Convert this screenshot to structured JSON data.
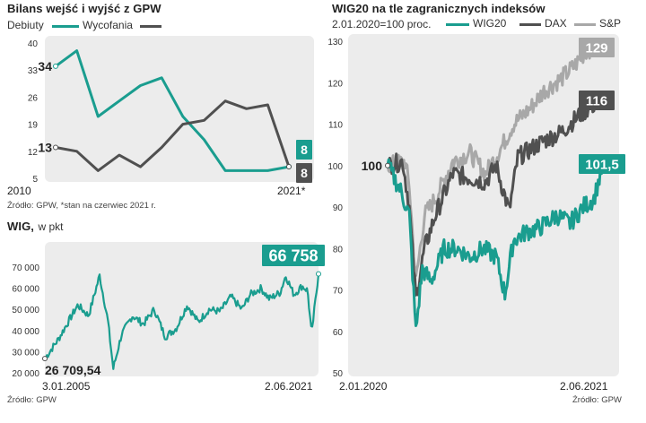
{
  "colors": {
    "teal": "#1a9d8f",
    "dark": "#505050",
    "gray": "#a8a8a8",
    "panel": "#ececec"
  },
  "chart_data": [
    {
      "type": "line",
      "title": "Bilans wejść i wyjść z GPW",
      "legend": [
        "Debiuty",
        "Wycofania"
      ],
      "ylim": [
        5,
        40
      ],
      "yticks": [
        "40",
        "33",
        "26",
        "19",
        "12",
        "5"
      ],
      "x_start_label": "2010",
      "x_end_label": "2021*",
      "source": "Źródło: GPW, *stan na czerwiec 2021 r.",
      "series": [
        {
          "name": "Debiuty",
          "values": [
            34,
            38,
            21,
            25,
            29,
            31,
            21,
            15,
            7,
            7,
            7,
            8
          ],
          "start_label": "34",
          "end_label": "8"
        },
        {
          "name": "Wycofania",
          "values": [
            13,
            12,
            7,
            11,
            8,
            13,
            19,
            20,
            25,
            23,
            24,
            8
          ],
          "start_label": "13",
          "end_label": "8"
        }
      ]
    },
    {
      "type": "line",
      "title": "WIG,",
      "subtitle": "w pkt",
      "ylim": [
        20000,
        70000
      ],
      "yticks": [
        "70 000",
        "60 000",
        "50 000",
        "40 000",
        "30 000",
        "20 000"
      ],
      "x_start_label": "3.01.2005",
      "x_end_label": "2.06.2021",
      "start_value_label": "26 709,54",
      "end_value_label": "66 758",
      "source": "Źródło: GPW",
      "series": [
        {
          "name": "WIG",
          "points": [
            [
              0,
              26710
            ],
            [
              0.05,
              36000
            ],
            [
              0.12,
              52000
            ],
            [
              0.16,
              47000
            ],
            [
              0.2,
              66000
            ],
            [
              0.23,
              45000
            ],
            [
              0.25,
              22000
            ],
            [
              0.28,
              38000
            ],
            [
              0.32,
              47000
            ],
            [
              0.36,
              43000
            ],
            [
              0.4,
              50000
            ],
            [
              0.44,
              37000
            ],
            [
              0.48,
              41000
            ],
            [
              0.52,
              52000
            ],
            [
              0.56,
              44000
            ],
            [
              0.6,
              50000
            ],
            [
              0.64,
              49000
            ],
            [
              0.68,
              56000
            ],
            [
              0.72,
              50000
            ],
            [
              0.75,
              57000
            ],
            [
              0.79,
              60000
            ],
            [
              0.82,
              55000
            ],
            [
              0.86,
              58000
            ],
            [
              0.88,
              66000
            ],
            [
              0.91,
              57000
            ],
            [
              0.94,
              61000
            ],
            [
              0.96,
              59000
            ],
            [
              0.975,
              38000
            ],
            [
              0.985,
              50000
            ],
            [
              1.0,
              66758
            ]
          ]
        }
      ]
    },
    {
      "type": "line",
      "title": "WIG20 na tle zagranicznych indeksów",
      "subtitle": "2.01.2020=100 proc.",
      "legend": [
        "WIG20",
        "DAX",
        "S&P"
      ],
      "ylim": [
        50,
        130
      ],
      "yticks": [
        "130",
        "120",
        "110",
        "100",
        "90",
        "80",
        "70",
        "60",
        "50"
      ],
      "x_start_label": "2.01.2020",
      "x_end_label": "2.06.2021",
      "start_value_label": "100",
      "source": "Źródło: GPW",
      "series": [
        {
          "name": "S&P",
          "end_label": "129",
          "points": [
            [
              0,
              100
            ],
            [
              0.08,
              101
            ],
            [
              0.1,
              95
            ],
            [
              0.13,
              72
            ],
            [
              0.17,
              88
            ],
            [
              0.22,
              92
            ],
            [
              0.3,
              101
            ],
            [
              0.38,
              103
            ],
            [
              0.45,
              98
            ],
            [
              0.52,
              104
            ],
            [
              0.58,
              110
            ],
            [
              0.66,
              114
            ],
            [
              0.72,
              118
            ],
            [
              0.8,
              121
            ],
            [
              0.86,
              124
            ],
            [
              0.92,
              128
            ],
            [
              1.0,
              129
            ]
          ]
        },
        {
          "name": "DAX",
          "end_label": "116",
          "points": [
            [
              0,
              100
            ],
            [
              0.07,
              101
            ],
            [
              0.1,
              90
            ],
            [
              0.13,
              68
            ],
            [
              0.17,
              80
            ],
            [
              0.22,
              88
            ],
            [
              0.3,
              98
            ],
            [
              0.38,
              97
            ],
            [
              0.45,
              96
            ],
            [
              0.5,
              100
            ],
            [
              0.56,
              89
            ],
            [
              0.6,
              102
            ],
            [
              0.66,
              104
            ],
            [
              0.72,
              106
            ],
            [
              0.8,
              108
            ],
            [
              0.88,
              112
            ],
            [
              0.93,
              114
            ],
            [
              1.0,
              116
            ]
          ]
        },
        {
          "name": "WIG20",
          "end_label": "101,5",
          "points": [
            [
              0,
              100
            ],
            [
              0.06,
              94
            ],
            [
              0.1,
              88
            ],
            [
              0.13,
              60
            ],
            [
              0.16,
              75
            ],
            [
              0.2,
              72
            ],
            [
              0.26,
              80
            ],
            [
              0.32,
              80
            ],
            [
              0.38,
              78
            ],
            [
              0.44,
              80
            ],
            [
              0.5,
              78
            ],
            [
              0.54,
              69
            ],
            [
              0.58,
              82
            ],
            [
              0.64,
              84
            ],
            [
              0.7,
              85
            ],
            [
              0.78,
              88
            ],
            [
              0.84,
              86
            ],
            [
              0.9,
              90
            ],
            [
              0.95,
              92
            ],
            [
              1.0,
              101.5
            ]
          ]
        }
      ]
    }
  ]
}
